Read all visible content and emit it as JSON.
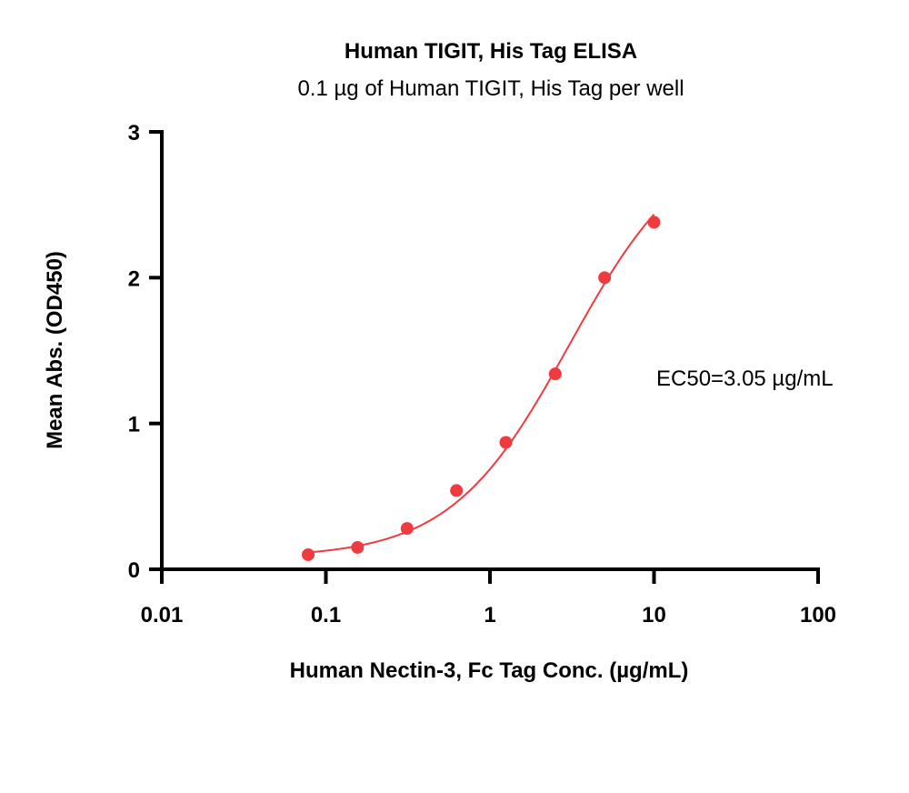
{
  "chart_data": {
    "type": "scatter",
    "title": "Human TIGIT, His Tag ELISA",
    "subtitle": "0.1 µg of Human TIGIT, His Tag per well",
    "xlabel": "Human Nectin-3, Fc Tag Conc. (µg/mL)",
    "ylabel": "Mean Abs. (OD450)",
    "x_scale": "log",
    "xlim": [
      0.01,
      100
    ],
    "ylim": [
      0,
      3
    ],
    "x_ticks": [
      0.01,
      0.1,
      1,
      10,
      100
    ],
    "x_tick_labels": [
      "0.01",
      "0.1",
      "1",
      "10",
      "100"
    ],
    "y_ticks": [
      0,
      1,
      2,
      3
    ],
    "y_tick_labels": [
      "0",
      "1",
      "2",
      "3"
    ],
    "grid": false,
    "legend": "none",
    "series": [
      {
        "x": [
          0.078,
          0.156,
          0.3125,
          0.625,
          1.25,
          2.5,
          5,
          10
        ],
        "y": [
          0.1,
          0.15,
          0.28,
          0.54,
          0.87,
          1.34,
          2.0,
          2.38
        ],
        "color": "#ef3b3f",
        "fit": "sigmoidal",
        "fit_params": {
          "bottom": 0.08,
          "top": 3.0,
          "ec50": 3.05,
          "hill": 1.2
        }
      }
    ],
    "annotations": [
      {
        "text": "EC50=3.05 µg/mL"
      }
    ]
  }
}
